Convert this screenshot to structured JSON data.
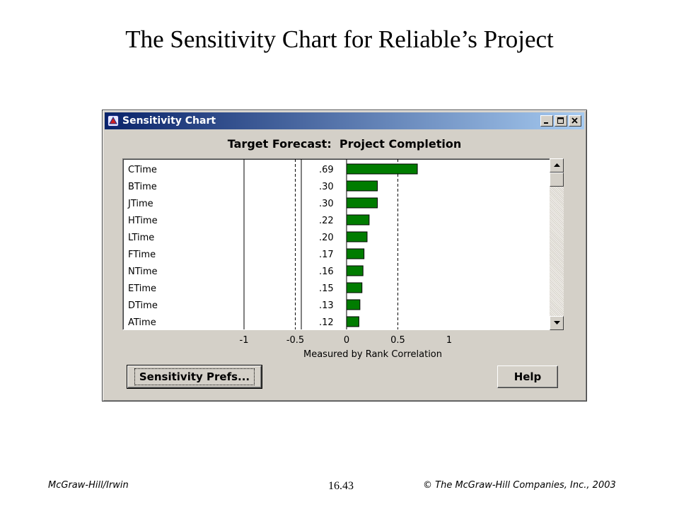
{
  "slide": {
    "title": "The Sensitivity Chart for Reliable’s Project",
    "footer_left": "McGraw-Hill/Irwin",
    "footer_center": "16.43",
    "footer_right": "© The McGraw-Hill Companies, Inc., 2003"
  },
  "window": {
    "title": "Sensitivity Chart",
    "icon": "crystal-ball-app-icon",
    "caption_buttons": [
      "minimize-icon",
      "maximize-icon",
      "close-icon"
    ],
    "target_forecast_label": "Target Forecast:",
    "target_forecast_value": "Project Completion"
  },
  "buttons": {
    "prefs_label": "Sensitivity Prefs...",
    "help_label": "Help"
  },
  "colors": {
    "bar_fill": "#007c00",
    "bar_stroke": "#000000",
    "window_bg": "#d4d0c8",
    "titlebar_start": "#0a246a",
    "titlebar_end": "#a6caf0"
  },
  "chart_data": {
    "type": "bar",
    "orientation": "horizontal",
    "title": "Target Forecast:  Project Completion",
    "xlabel": "Measured by Rank Correlation",
    "xlim": [
      -1,
      1
    ],
    "x_ticks": [
      "-1",
      "-0.5",
      "0",
      "0.5",
      "1"
    ],
    "dashed_gridlines_at": [
      -0.5,
      0.5
    ],
    "categories": [
      "CTime",
      "BTime",
      "JTime",
      "HTime",
      "LTime",
      "FTime",
      "NTime",
      "ETime",
      "DTime",
      "ATime"
    ],
    "value_labels": [
      ".69",
      ".30",
      ".30",
      ".22",
      ".20",
      ".17",
      ".16",
      ".15",
      ".13",
      ".12"
    ],
    "values": [
      0.69,
      0.3,
      0.3,
      0.22,
      0.2,
      0.17,
      0.16,
      0.15,
      0.13,
      0.12
    ]
  }
}
